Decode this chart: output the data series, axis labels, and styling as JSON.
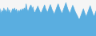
{
  "values": [
    72000,
    58000,
    68000,
    62000,
    74000,
    65000,
    70000,
    60000,
    75000,
    63000,
    69000,
    58000,
    65000,
    72000,
    68000,
    74000,
    66000,
    71000,
    60000,
    68000,
    63000,
    70000,
    66000,
    72000,
    68000,
    74000,
    69000,
    85000,
    70000,
    65000,
    72000,
    78000,
    82000,
    71000,
    77000,
    65000,
    61000,
    68000,
    73000,
    79000,
    72000,
    66000,
    60000,
    64000,
    70000,
    76000,
    82000,
    73000,
    67000,
    62000,
    70000,
    77000,
    83000,
    75000,
    68000,
    63000,
    57000,
    65000,
    72000,
    79000,
    85000,
    77000,
    70000,
    64000,
    59000,
    67000,
    74000,
    81000,
    88000,
    79000,
    71000,
    65000,
    59000,
    67000,
    74000,
    81000,
    75000,
    68000,
    62000,
    57000,
    52000,
    46000,
    44000,
    51000,
    58000,
    65000,
    72000,
    64000,
    57000,
    51000,
    59000,
    66000,
    73000,
    80000,
    72000,
    64000,
    57000,
    51000,
    59000,
    66000
  ],
  "line_color": "#5aaee0",
  "fill_color": "#5aaee0",
  "background_color": "#f5f5f5",
  "ylim_min": 0,
  "ylim_max": 95000
}
